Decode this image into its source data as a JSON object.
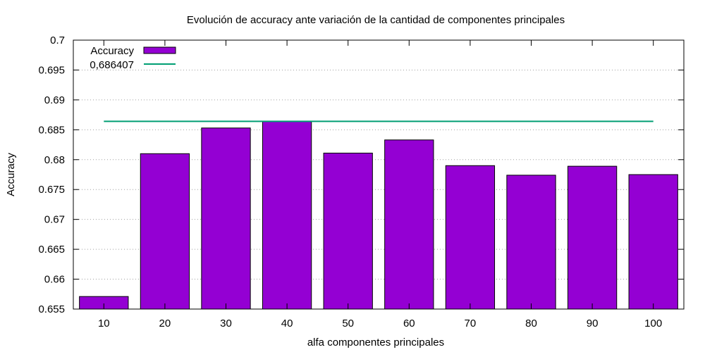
{
  "chart_data": {
    "type": "bar",
    "title": "Evolución de accuracy ante variación de la cantidad de componentes principales",
    "xlabel": "alfa componentes principales",
    "ylabel": "Accuracy",
    "categories": [
      "10",
      "20",
      "30",
      "40",
      "50",
      "60",
      "70",
      "80",
      "90",
      "100"
    ],
    "series": [
      {
        "name": "Accuracy",
        "type": "bar",
        "color": "#9400d3",
        "values": [
          0.6571,
          0.681,
          0.6853,
          0.6864,
          0.6811,
          0.6833,
          0.679,
          0.6774,
          0.6789,
          0.6775
        ]
      },
      {
        "name": "0,686407",
        "type": "line",
        "color": "#009e73",
        "value": 0.686407
      }
    ],
    "ylim": [
      0.655,
      0.7
    ],
    "yticks": [
      "0.655",
      "0.66",
      "0.665",
      "0.67",
      "0.675",
      "0.68",
      "0.685",
      "0.69",
      "0.695",
      "0.7"
    ],
    "grid": "horizontal dotted",
    "legend_position": "top-left"
  }
}
